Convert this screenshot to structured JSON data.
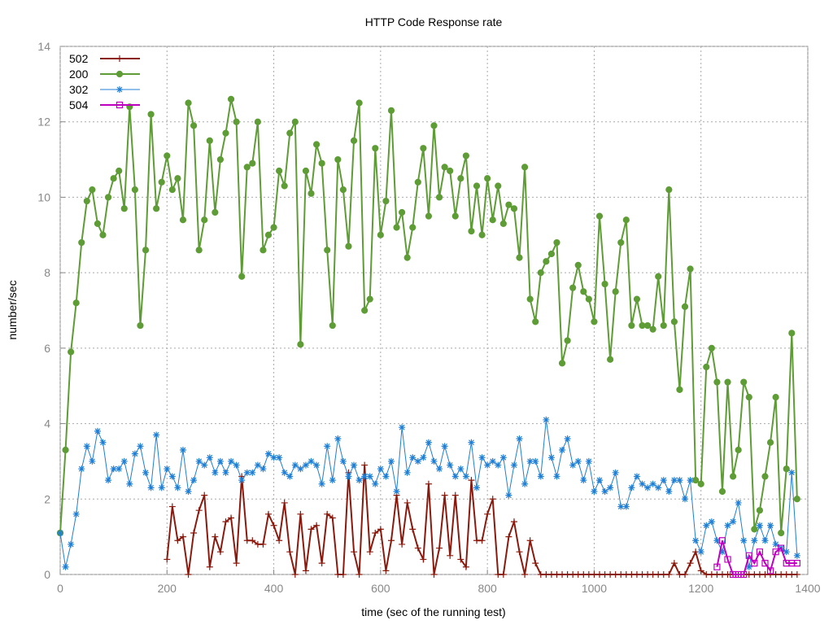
{
  "chart_data": {
    "type": "line",
    "title": "HTTP Code Response rate",
    "x_label": "time (sec of the running test)",
    "y_label": "number/sec",
    "xlim": [
      0,
      1400
    ],
    "ylim": [
      0,
      14
    ],
    "xticks": [
      0,
      200,
      400,
      600,
      800,
      1000,
      1200,
      1400
    ],
    "yticks": [
      0,
      2,
      4,
      6,
      8,
      10,
      12,
      14
    ],
    "grid": true,
    "legend": "top-left",
    "x": [
      0,
      10,
      20,
      30,
      40,
      50,
      60,
      70,
      80,
      90,
      100,
      110,
      120,
      130,
      140,
      150,
      160,
      170,
      180,
      190,
      200,
      210,
      220,
      230,
      240,
      250,
      260,
      270,
      280,
      290,
      300,
      310,
      320,
      330,
      340,
      350,
      360,
      370,
      380,
      390,
      400,
      410,
      420,
      430,
      440,
      450,
      460,
      470,
      480,
      490,
      500,
      510,
      520,
      530,
      540,
      550,
      560,
      570,
      580,
      590,
      600,
      610,
      620,
      630,
      640,
      650,
      660,
      670,
      680,
      690,
      700,
      710,
      720,
      730,
      740,
      750,
      760,
      770,
      780,
      790,
      800,
      810,
      820,
      830,
      840,
      850,
      860,
      870,
      880,
      890,
      900,
      910,
      920,
      930,
      940,
      950,
      960,
      970,
      980,
      990,
      1000,
      1010,
      1020,
      1030,
      1040,
      1050,
      1060,
      1070,
      1080,
      1090,
      1100,
      1110,
      1120,
      1130,
      1140,
      1150,
      1160,
      1170,
      1180,
      1190,
      1200,
      1210,
      1220,
      1230,
      1240,
      1250,
      1260,
      1270,
      1280,
      1290,
      1300,
      1310,
      1320,
      1330,
      1340,
      1350,
      1360,
      1370,
      1380
    ],
    "series": [
      {
        "name": "502",
        "color": "#8b1a0e",
        "marker": "plus",
        "values": [
          null,
          null,
          null,
          null,
          null,
          null,
          null,
          null,
          null,
          null,
          null,
          null,
          null,
          null,
          null,
          null,
          null,
          null,
          null,
          null,
          0.4,
          1.8,
          0.9,
          1.0,
          0.0,
          1.1,
          1.7,
          2.1,
          0.2,
          1.0,
          0.6,
          1.4,
          1.5,
          0.3,
          2.6,
          0.9,
          0.9,
          0.8,
          0.8,
          1.6,
          1.3,
          0.9,
          1.9,
          0.6,
          0.0,
          1.6,
          0.1,
          1.2,
          1.3,
          0.3,
          1.6,
          1.5,
          0.0,
          0.0,
          2.7,
          0.6,
          0.0,
          2.9,
          0.6,
          1.1,
          1.2,
          0.1,
          0.9,
          2.1,
          0.8,
          1.9,
          1.2,
          0.7,
          0.4,
          2.4,
          0.0,
          0.7,
          2.1,
          0.5,
          2.1,
          0.4,
          0.2,
          2.5,
          0.9,
          0.9,
          1.6,
          2.0,
          0.0,
          0.0,
          1.0,
          1.4,
          0.6,
          0.0,
          0.9,
          0.3,
          0,
          0,
          0,
          0,
          0,
          0,
          0,
          0,
          0,
          0,
          0,
          0,
          0,
          0,
          0,
          0,
          0,
          0,
          0,
          0,
          0,
          0,
          0,
          0,
          0,
          0.3,
          0,
          0,
          0.3,
          0.6,
          0.1,
          0,
          0,
          0,
          0,
          0,
          0,
          0,
          0,
          0,
          0,
          0,
          0,
          0,
          0,
          0,
          0,
          0,
          0
        ]
      },
      {
        "name": "200",
        "color": "#5e9c36",
        "marker": "circle",
        "values": [
          1.1,
          3.3,
          5.9,
          7.2,
          8.8,
          9.9,
          10.2,
          9.3,
          9.0,
          10.0,
          10.5,
          10.7,
          9.7,
          12.4,
          10.2,
          6.6,
          8.6,
          12.2,
          9.7,
          10.4,
          11.1,
          10.2,
          10.5,
          9.4,
          12.5,
          11.9,
          8.6,
          9.4,
          11.5,
          9.6,
          11.0,
          11.7,
          12.6,
          12.0,
          7.9,
          10.8,
          10.9,
          12.0,
          8.6,
          9.0,
          9.2,
          10.7,
          10.3,
          11.7,
          12.0,
          6.1,
          10.7,
          10.1,
          11.4,
          10.9,
          8.6,
          6.6,
          11.0,
          10.2,
          8.7,
          11.5,
          12.5,
          7.0,
          7.3,
          11.3,
          9.0,
          9.9,
          12.3,
          9.2,
          9.6,
          8.4,
          9.2,
          10.4,
          11.3,
          9.5,
          11.9,
          10.0,
          10.8,
          10.7,
          9.5,
          10.5,
          11.1,
          9.1,
          10.3,
          9.0,
          10.5,
          9.4,
          10.3,
          9.3,
          9.8,
          9.7,
          8.4,
          10.8,
          7.3,
          6.7,
          8.0,
          8.3,
          8.5,
          8.8,
          5.6,
          6.2,
          7.6,
          8.2,
          7.5,
          7.3,
          6.7,
          9.5,
          7.7,
          5.7,
          7.5,
          8.8,
          9.4,
          6.6,
          7.3,
          6.6,
          6.6,
          6.5,
          7.9,
          6.6,
          10.2,
          6.7,
          4.9,
          7.1,
          8.1,
          2.5,
          2.4,
          5.5,
          6.0,
          5.1,
          2.2,
          5.1,
          2.6,
          3.3,
          5.1,
          4.7,
          1.2,
          1.7,
          2.6,
          3.5,
          4.7,
          1.1,
          2.8,
          6.4,
          2.0
        ]
      },
      {
        "name": "302",
        "color": "#1f7fd4",
        "marker": "star",
        "values": [
          1.1,
          0.2,
          0.8,
          1.6,
          2.8,
          3.4,
          3.0,
          3.8,
          3.5,
          2.5,
          2.8,
          2.8,
          3.0,
          2.4,
          3.2,
          3.4,
          2.7,
          2.3,
          3.7,
          2.3,
          2.8,
          2.6,
          2.3,
          3.3,
          2.2,
          2.5,
          3.0,
          2.9,
          3.1,
          2.7,
          3.0,
          2.7,
          3.0,
          2.9,
          2.5,
          2.7,
          2.7,
          2.9,
          2.8,
          3.2,
          3.1,
          3.1,
          2.7,
          2.6,
          2.9,
          2.8,
          2.9,
          3.0,
          2.9,
          2.4,
          3.4,
          2.5,
          3.6,
          3.0,
          2.6,
          2.9,
          2.5,
          2.6,
          2.6,
          2.4,
          2.8,
          2.6,
          3.0,
          2.2,
          3.9,
          2.7,
          3.1,
          3.0,
          3.1,
          3.5,
          3.0,
          2.8,
          3.4,
          2.9,
          2.6,
          2.8,
          2.6,
          3.5,
          2.3,
          3.1,
          2.9,
          3.0,
          2.9,
          3.1,
          2.1,
          2.9,
          3.6,
          2.4,
          3.0,
          3.0,
          2.6,
          4.1,
          3.1,
          2.6,
          3.3,
          3.6,
          2.9,
          3.0,
          2.5,
          3.0,
          2.2,
          2.5,
          2.2,
          2.3,
          2.7,
          1.8,
          1.8,
          2.3,
          2.6,
          2.4,
          2.3,
          2.4,
          2.3,
          2.5,
          2.2,
          2.5,
          2.5,
          2.0,
          2.5,
          0.9,
          0.6,
          1.3,
          1.4,
          0.9,
          0.6,
          1.3,
          1.4,
          1.9,
          0.9,
          0.2,
          0.9,
          1.3,
          0.9,
          1.3,
          0.8,
          0.7,
          0.6,
          2.7,
          0.5
        ]
      },
      {
        "name": "504",
        "color": "#c000c0",
        "marker": "square",
        "values": [
          null,
          null,
          null,
          null,
          null,
          null,
          null,
          null,
          null,
          null,
          null,
          null,
          null,
          null,
          null,
          null,
          null,
          null,
          null,
          null,
          null,
          null,
          null,
          null,
          null,
          null,
          null,
          null,
          null,
          null,
          null,
          null,
          null,
          null,
          null,
          null,
          null,
          null,
          null,
          null,
          null,
          null,
          null,
          null,
          null,
          null,
          null,
          null,
          null,
          null,
          null,
          null,
          null,
          null,
          null,
          null,
          null,
          null,
          null,
          null,
          null,
          null,
          null,
          null,
          null,
          null,
          null,
          null,
          null,
          null,
          null,
          null,
          null,
          null,
          null,
          null,
          null,
          null,
          null,
          null,
          null,
          null,
          null,
          null,
          null,
          null,
          null,
          null,
          null,
          null,
          null,
          null,
          null,
          null,
          null,
          null,
          null,
          null,
          null,
          null,
          null,
          null,
          null,
          null,
          null,
          null,
          null,
          null,
          null,
          null,
          null,
          null,
          null,
          null,
          null,
          null,
          null,
          null,
          null,
          null,
          null,
          null,
          null,
          0.2,
          0.9,
          0.4,
          0.0,
          0.0,
          0.0,
          0.5,
          0.3,
          0.6,
          0.3,
          0.1,
          0.6,
          0.7,
          0.3,
          0.3,
          0.3
        ]
      }
    ]
  }
}
